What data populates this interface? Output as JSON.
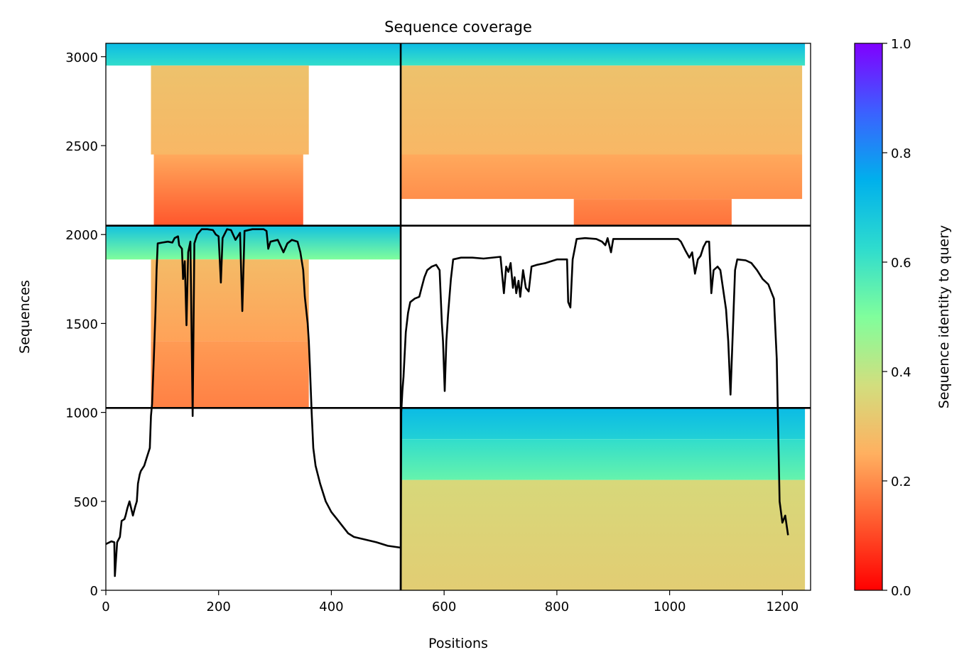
{
  "chart_data": {
    "type": "heatmap",
    "title": "Sequence coverage",
    "xlabel": "Positions",
    "ylabel": "Sequences",
    "xlim": [
      0,
      1250
    ],
    "ylim": [
      0,
      3075
    ],
    "xticks": [
      0,
      200,
      400,
      600,
      800,
      1000,
      1200
    ],
    "yticks": [
      0,
      500,
      1000,
      1500,
      2000,
      2500,
      3000
    ],
    "grid": false,
    "colorbar": {
      "label": "Sequence identity to query",
      "colormap": "rainbow_r",
      "range": [
        0.0,
        1.0
      ],
      "ticks": [
        "0.0",
        "0.2",
        "0.4",
        "0.6",
        "0.8",
        "1.0"
      ]
    },
    "dividers": {
      "x": [
        523
      ],
      "y": [
        1025,
        2050
      ]
    },
    "blocks": [
      {
        "x_range": [
          0,
          523
        ],
        "y_range": [
          2050,
          3075
        ],
        "bands": [
          {
            "y0": 2950,
            "y1": 3075,
            "x0": 0,
            "x1": 523,
            "identity_top": 0.72,
            "identity_bottom": 0.62
          },
          {
            "y0": 2450,
            "y1": 2950,
            "x0": 80,
            "x1": 360,
            "identity_top": 0.3,
            "identity_bottom": 0.27
          },
          {
            "y0": 2050,
            "y1": 2450,
            "x0": 85,
            "x1": 350,
            "identity_top": 0.24,
            "identity_bottom": 0.12
          }
        ]
      },
      {
        "x_range": [
          523,
          1250
        ],
        "y_range": [
          2050,
          3075
        ],
        "bands": [
          {
            "y0": 2950,
            "y1": 3075,
            "x0": 523,
            "x1": 1240,
            "identity_top": 0.72,
            "identity_bottom": 0.6
          },
          {
            "y0": 2450,
            "y1": 2950,
            "x0": 523,
            "x1": 1235,
            "identity_top": 0.3,
            "identity_bottom": 0.27
          },
          {
            "y0": 2200,
            "y1": 2450,
            "x0": 523,
            "x1": 1235,
            "identity_top": 0.24,
            "identity_bottom": 0.2
          },
          {
            "y0": 2050,
            "y1": 2200,
            "x0": 830,
            "x1": 1110,
            "identity_top": 0.19,
            "identity_bottom": 0.16
          }
        ]
      },
      {
        "x_range": [
          0,
          523
        ],
        "y_range": [
          1025,
          2050
        ],
        "bands": [
          {
            "y0": 1860,
            "y1": 2050,
            "x0": 0,
            "x1": 523,
            "identity_top": 0.7,
            "identity_bottom": 0.5
          },
          {
            "y0": 1400,
            "y1": 1860,
            "x0": 80,
            "x1": 360,
            "identity_top": 0.28,
            "identity_bottom": 0.23
          },
          {
            "y0": 1025,
            "y1": 1400,
            "x0": 80,
            "x1": 360,
            "identity_top": 0.22,
            "identity_bottom": 0.18
          }
        ]
      },
      {
        "x_range": [
          523,
          1250
        ],
        "y_range": [
          0,
          1025
        ],
        "bands": [
          {
            "y0": 850,
            "y1": 1025,
            "x0": 523,
            "x1": 1240,
            "identity_top": 0.72,
            "identity_bottom": 0.66
          },
          {
            "y0": 620,
            "y1": 850,
            "x0": 523,
            "x1": 1240,
            "identity_top": 0.62,
            "identity_bottom": 0.54
          },
          {
            "y0": 0,
            "y1": 620,
            "x0": 523,
            "x1": 1240,
            "identity_top": 0.36,
            "identity_bottom": 0.33
          }
        ]
      }
    ],
    "coverage_lines": [
      {
        "x_range": [
          0,
          523
        ],
        "y_range": [
          0,
          2050
        ],
        "points": [
          [
            0,
            260
          ],
          [
            10,
            275
          ],
          [
            15,
            270
          ],
          [
            16,
            80
          ],
          [
            20,
            270
          ],
          [
            25,
            300
          ],
          [
            28,
            390
          ],
          [
            33,
            400
          ],
          [
            35,
            420
          ],
          [
            38,
            460
          ],
          [
            42,
            500
          ],
          [
            48,
            420
          ],
          [
            52,
            470
          ],
          [
            55,
            500
          ],
          [
            57,
            600
          ],
          [
            60,
            650
          ],
          [
            62,
            670
          ],
          [
            68,
            700
          ],
          [
            72,
            740
          ],
          [
            78,
            800
          ],
          [
            80,
            980
          ],
          [
            82,
            1050
          ],
          [
            85,
            1300
          ],
          [
            88,
            1560
          ],
          [
            90,
            1800
          ],
          [
            92,
            1950
          ],
          [
            100,
            1955
          ],
          [
            110,
            1960
          ],
          [
            118,
            1955
          ],
          [
            122,
            1980
          ],
          [
            128,
            1990
          ],
          [
            130,
            1940
          ],
          [
            135,
            1920
          ],
          [
            137,
            1750
          ],
          [
            140,
            1850
          ],
          [
            143,
            1490
          ],
          [
            146,
            1900
          ],
          [
            150,
            1960
          ],
          [
            154,
            980
          ],
          [
            157,
            1950
          ],
          [
            162,
            2000
          ],
          [
            170,
            2030
          ],
          [
            180,
            2030
          ],
          [
            190,
            2025
          ],
          [
            195,
            2000
          ],
          [
            200,
            1990
          ],
          [
            204,
            1730
          ],
          [
            207,
            1980
          ],
          [
            215,
            2030
          ],
          [
            222,
            2025
          ],
          [
            230,
            1970
          ],
          [
            238,
            2010
          ],
          [
            242,
            1570
          ],
          [
            246,
            2020
          ],
          [
            260,
            2030
          ],
          [
            280,
            2030
          ],
          [
            285,
            2020
          ],
          [
            288,
            1920
          ],
          [
            292,
            1960
          ],
          [
            305,
            1970
          ],
          [
            315,
            1900
          ],
          [
            322,
            1950
          ],
          [
            330,
            1970
          ],
          [
            340,
            1960
          ],
          [
            345,
            1900
          ],
          [
            350,
            1800
          ],
          [
            353,
            1650
          ],
          [
            358,
            1500
          ],
          [
            360,
            1400
          ],
          [
            362,
            1250
          ],
          [
            365,
            1000
          ],
          [
            368,
            800
          ],
          [
            372,
            700
          ],
          [
            380,
            600
          ],
          [
            390,
            500
          ],
          [
            400,
            440
          ],
          [
            410,
            400
          ],
          [
            420,
            360
          ],
          [
            430,
            320
          ],
          [
            440,
            300
          ],
          [
            460,
            285
          ],
          [
            480,
            270
          ],
          [
            500,
            250
          ],
          [
            522,
            240
          ]
        ]
      },
      {
        "x_range": [
          523,
          1250
        ],
        "y_range": [
          0,
          2050
        ],
        "points": [
          [
            523,
            0
          ],
          [
            524,
            1000
          ],
          [
            526,
            1120
          ],
          [
            528,
            1200
          ],
          [
            532,
            1450
          ],
          [
            536,
            1560
          ],
          [
            540,
            1620
          ],
          [
            548,
            1640
          ],
          [
            556,
            1650
          ],
          [
            560,
            1700
          ],
          [
            565,
            1760
          ],
          [
            570,
            1800
          ],
          [
            578,
            1820
          ],
          [
            586,
            1830
          ],
          [
            592,
            1800
          ],
          [
            596,
            1500
          ],
          [
            598,
            1400
          ],
          [
            601,
            1120
          ],
          [
            604,
            1400
          ],
          [
            607,
            1550
          ],
          [
            612,
            1750
          ],
          [
            616,
            1860
          ],
          [
            630,
            1870
          ],
          [
            650,
            1870
          ],
          [
            670,
            1865
          ],
          [
            700,
            1875
          ],
          [
            706,
            1670
          ],
          [
            710,
            1820
          ],
          [
            714,
            1790
          ],
          [
            718,
            1840
          ],
          [
            722,
            1700
          ],
          [
            725,
            1760
          ],
          [
            728,
            1670
          ],
          [
            732,
            1740
          ],
          [
            735,
            1650
          ],
          [
            740,
            1800
          ],
          [
            745,
            1700
          ],
          [
            750,
            1680
          ],
          [
            755,
            1820
          ],
          [
            765,
            1830
          ],
          [
            780,
            1840
          ],
          [
            800,
            1860
          ],
          [
            818,
            1860
          ],
          [
            820,
            1620
          ],
          [
            824,
            1590
          ],
          [
            828,
            1860
          ],
          [
            835,
            1975
          ],
          [
            850,
            1980
          ],
          [
            870,
            1975
          ],
          [
            880,
            1960
          ],
          [
            886,
            1940
          ],
          [
            890,
            1980
          ],
          [
            896,
            1900
          ],
          [
            900,
            1975
          ],
          [
            920,
            1975
          ],
          [
            950,
            1975
          ],
          [
            980,
            1975
          ],
          [
            1000,
            1975
          ],
          [
            1015,
            1975
          ],
          [
            1020,
            1960
          ],
          [
            1028,
            1910
          ],
          [
            1035,
            1870
          ],
          [
            1040,
            1900
          ],
          [
            1045,
            1780
          ],
          [
            1050,
            1860
          ],
          [
            1055,
            1880
          ],
          [
            1060,
            1930
          ],
          [
            1065,
            1960
          ],
          [
            1070,
            1960
          ],
          [
            1074,
            1670
          ],
          [
            1078,
            1800
          ],
          [
            1085,
            1820
          ],
          [
            1090,
            1800
          ],
          [
            1100,
            1580
          ],
          [
            1104,
            1400
          ],
          [
            1108,
            1100
          ],
          [
            1112,
            1450
          ],
          [
            1116,
            1800
          ],
          [
            1120,
            1860
          ],
          [
            1135,
            1855
          ],
          [
            1145,
            1840
          ],
          [
            1155,
            1800
          ],
          [
            1165,
            1750
          ],
          [
            1175,
            1720
          ],
          [
            1180,
            1680
          ],
          [
            1185,
            1640
          ],
          [
            1190,
            1300
          ],
          [
            1195,
            500
          ],
          [
            1200,
            380
          ],
          [
            1205,
            420
          ],
          [
            1210,
            310
          ]
        ]
      }
    ]
  }
}
